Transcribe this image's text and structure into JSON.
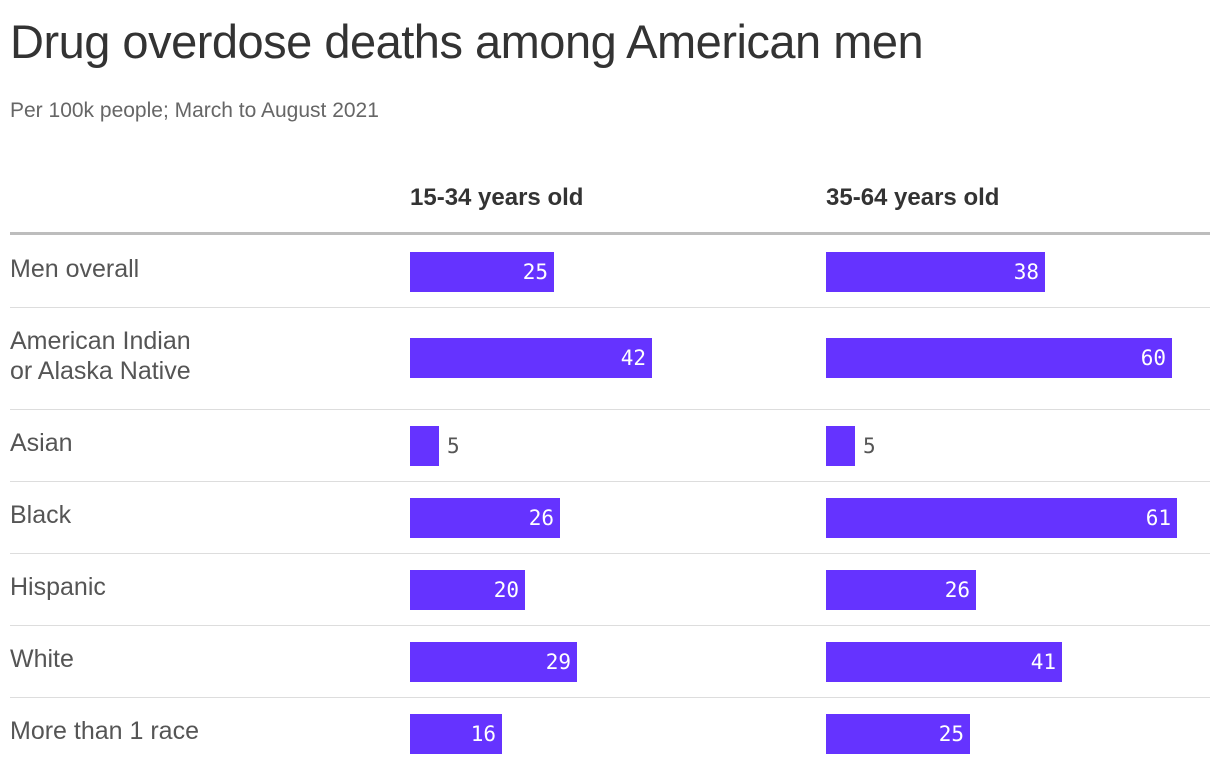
{
  "chart_data": {
    "type": "bar",
    "orientation": "horizontal",
    "title": "Drug overdose deaths among American men",
    "subtitle": "Per 100k people; March to August 2021",
    "categories": [
      "Men overall",
      "American Indian\nor Alaska Native",
      "Asian",
      "Black",
      "Hispanic",
      "White",
      "More than 1 race"
    ],
    "series": [
      {
        "name": "15-34 years old",
        "values": [
          25,
          42,
          5,
          26,
          20,
          29,
          16
        ]
      },
      {
        "name": "35-64 years old",
        "values": [
          38,
          60,
          5,
          61,
          26,
          41,
          25
        ]
      }
    ],
    "xlim": [
      0,
      66
    ],
    "color": "#6533ff",
    "grid": false,
    "legend": "none"
  }
}
